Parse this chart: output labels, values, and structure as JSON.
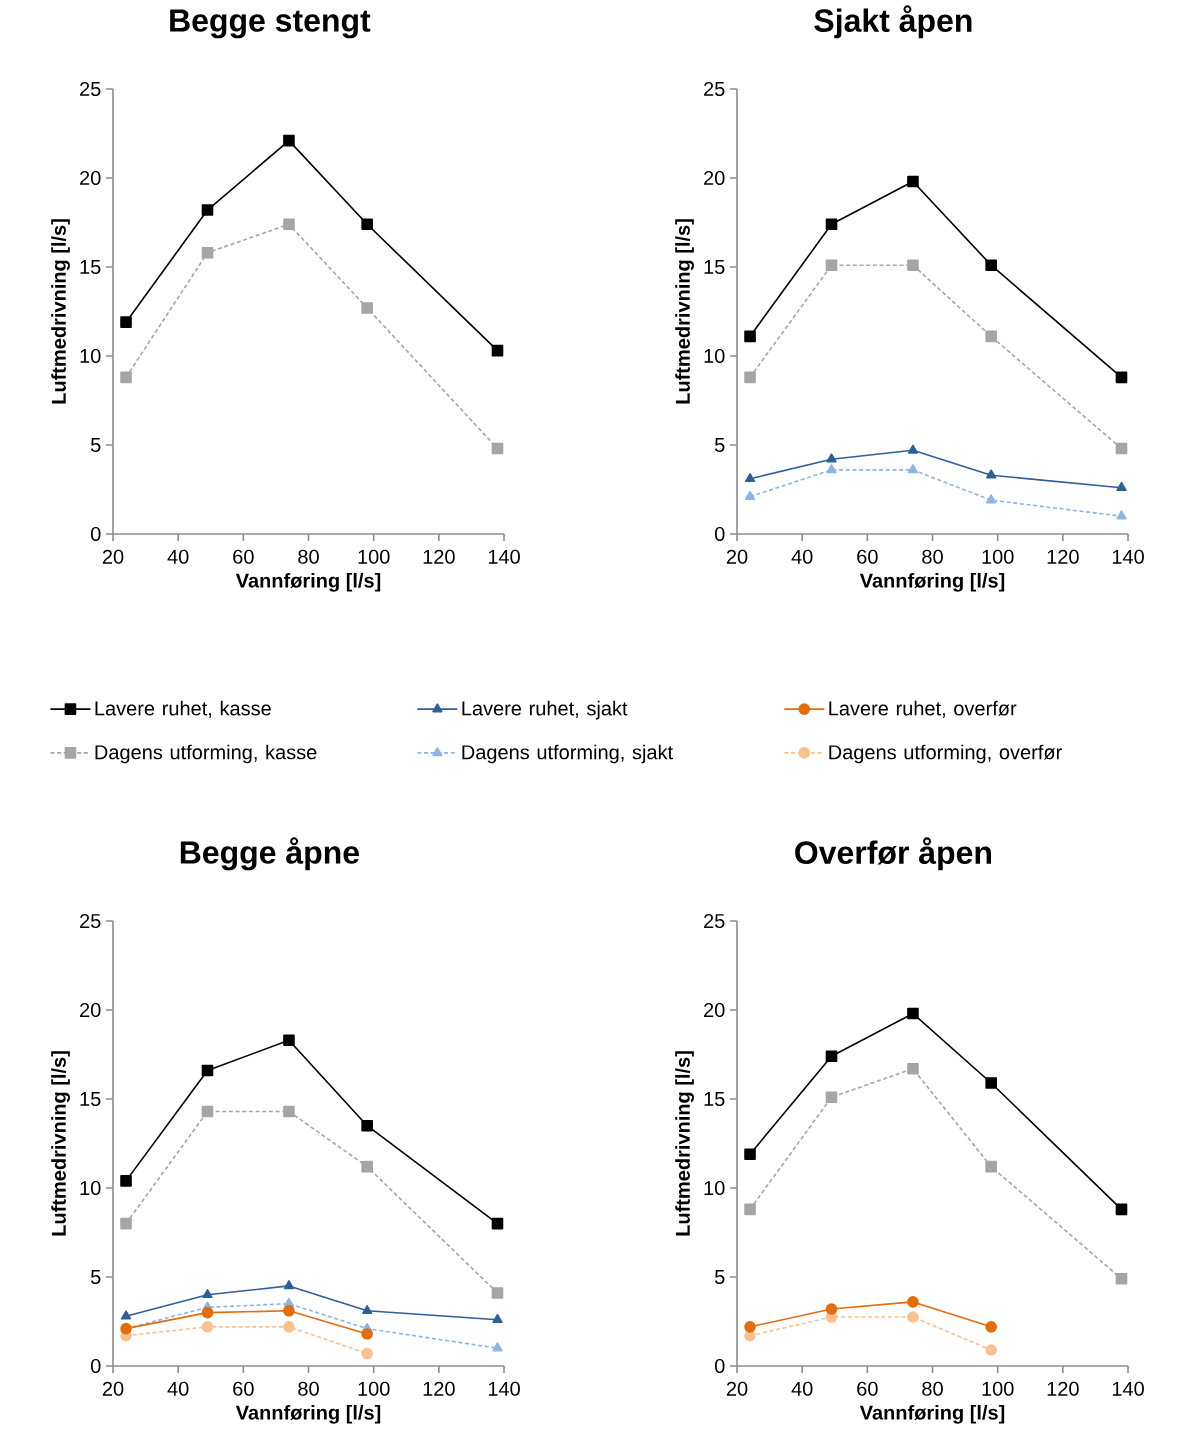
{
  "chart_data": [
    {
      "type": "line",
      "title": "Begge stengt",
      "xlabel": "Vannføring  [l/s]",
      "ylabel": "Luftmedrivning [l/s]",
      "x": [
        24,
        49,
        74,
        98,
        138
      ],
      "xlim": [
        20,
        140
      ],
      "ylim": [
        0,
        25
      ],
      "xticks": [
        20,
        40,
        60,
        80,
        100,
        120,
        140
      ],
      "yticks": [
        0,
        5,
        10,
        15,
        20,
        25
      ],
      "series": [
        {
          "color": "#000000",
          "marker": "square",
          "line_style": "solid",
          "values": [
            11.9,
            18.2,
            22.1,
            17.4,
            10.3
          ]
        },
        {
          "color": "#a5a5a5",
          "marker": "square",
          "line_style": "dashed",
          "values": [
            8.8,
            15.8,
            17.4,
            12.7,
            4.8
          ]
        }
      ]
    },
    {
      "type": "line",
      "title": "Sjakt åpen",
      "xlabel": "Vannføring  [l/s]",
      "ylabel": "Luftmedrivning [l/s]",
      "x": [
        24,
        49,
        74,
        98,
        138
      ],
      "xlim": [
        20,
        140
      ],
      "ylim": [
        0,
        25
      ],
      "xticks": [
        20,
        40,
        60,
        80,
        100,
        120,
        140
      ],
      "yticks": [
        0,
        5,
        10,
        15,
        20,
        25
      ],
      "series": [
        {
          "color": "#000000",
          "marker": "square",
          "line_style": "solid",
          "values": [
            11.1,
            17.4,
            19.8,
            15.1,
            8.8
          ]
        },
        {
          "color": "#2f5f98",
          "marker": "triangle",
          "line_style": "solid",
          "values": [
            3.1,
            4.2,
            4.7,
            3.3,
            2.6
          ]
        },
        {
          "color": "#a5a5a5",
          "marker": "square",
          "line_style": "dashed",
          "values": [
            8.8,
            15.1,
            15.1,
            11.1,
            4.8
          ]
        },
        {
          "color": "#8eb4e3",
          "marker": "triangle",
          "line_style": "dashed",
          "values": [
            2.1,
            3.6,
            3.6,
            1.9,
            1.0
          ]
        }
      ]
    },
    {
      "type": "line",
      "title": "Begge åpne",
      "xlabel": "Vannføring  [l/s]",
      "ylabel": "Luftmedrivning [l/s]",
      "x": [
        24,
        49,
        74,
        98,
        138
      ],
      "xlim": [
        20,
        140
      ],
      "ylim": [
        0,
        25
      ],
      "xticks": [
        20,
        40,
        60,
        80,
        100,
        120,
        140
      ],
      "yticks": [
        0,
        5,
        10,
        15,
        20,
        25
      ],
      "legend": "top",
      "series": [
        {
          "name": "Lavere ruhet, kasse",
          "color": "#000000",
          "marker": "square",
          "line_style": "solid",
          "values": [
            10.4,
            16.6,
            18.3,
            13.5,
            8.0
          ]
        },
        {
          "name": "Lavere ruhet, sjakt",
          "color": "#2f5f98",
          "marker": "triangle",
          "line_style": "solid",
          "values": [
            2.8,
            4.0,
            4.5,
            3.1,
            2.6
          ]
        },
        {
          "name": "Lavere ruhet, overfør",
          "color": "#e46c0a",
          "marker": "circle",
          "line_style": "solid",
          "values": [
            2.1,
            3.0,
            3.1,
            1.8,
            null
          ]
        },
        {
          "name": "Dagens utforming, kasse",
          "color": "#a5a5a5",
          "marker": "square",
          "line_style": "dashed",
          "values": [
            8.0,
            14.3,
            14.3,
            11.2,
            4.1
          ]
        },
        {
          "name": "Dagens utforming, sjakt",
          "color": "#8eb4e3",
          "marker": "triangle",
          "line_style": "dashed",
          "values": [
            2.1,
            3.3,
            3.5,
            2.1,
            1.0
          ]
        },
        {
          "name": "Dagens utforming, overfør",
          "color": "#fac090",
          "marker": "circle",
          "line_style": "dashed",
          "values": [
            1.7,
            2.2,
            2.2,
            0.7,
            null
          ]
        }
      ]
    },
    {
      "type": "line",
      "title": "Overfør åpen",
      "xlabel": "Vannføring  [l/s]",
      "ylabel": "Luftmedrivning [l/s]",
      "x": [
        24,
        49,
        74,
        98,
        138
      ],
      "xlim": [
        20,
        140
      ],
      "ylim": [
        0,
        25
      ],
      "xticks": [
        20,
        40,
        60,
        80,
        100,
        120,
        140
      ],
      "yticks": [
        0,
        5,
        10,
        15,
        20,
        25
      ],
      "series": [
        {
          "color": "#000000",
          "marker": "square",
          "line_style": "solid",
          "values": [
            11.9,
            17.4,
            19.8,
            15.9,
            8.8
          ]
        },
        {
          "color": "#e46c0a",
          "marker": "circle",
          "line_style": "solid",
          "values": [
            2.2,
            3.2,
            3.6,
            2.2,
            null
          ]
        },
        {
          "color": "#a5a5a5",
          "marker": "square",
          "line_style": "dashed",
          "values": [
            8.8,
            15.1,
            16.7,
            11.2,
            4.9
          ]
        },
        {
          "color": "#fac090",
          "marker": "circle",
          "line_style": "dashed",
          "values": [
            1.7,
            2.75,
            2.75,
            0.9,
            null
          ]
        }
      ]
    }
  ]
}
